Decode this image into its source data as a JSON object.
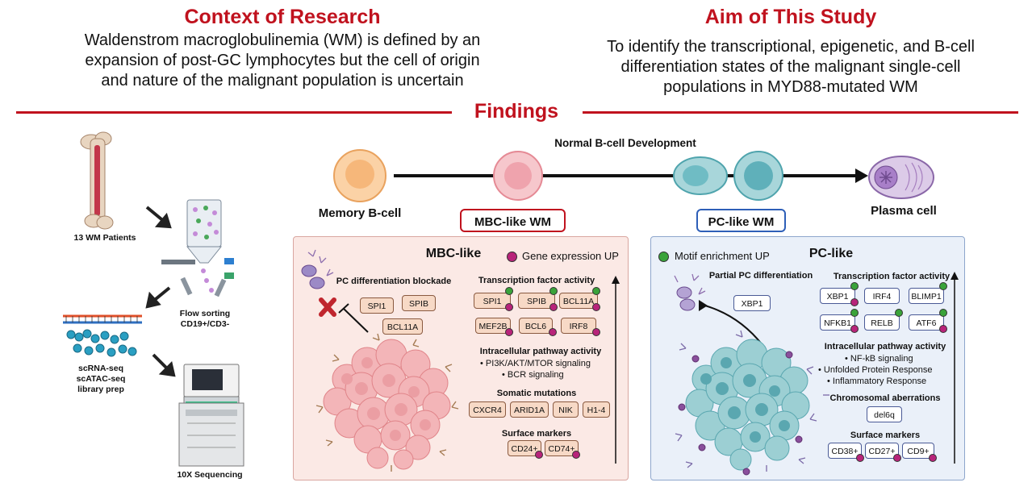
{
  "context": {
    "title": "Context of Research",
    "lines": [
      "Waldenstrom macroglobulinemia (WM) is defined by an",
      "expansion of post-GC lymphocytes but the cell of origin",
      "and nature of the malignant population is uncertain"
    ]
  },
  "aim": {
    "title": "Aim of This Study",
    "lines": [
      "To identify the transcriptional, epigenetic, and B-cell",
      "differentiation states of the malignant single-cell",
      "populations in MYD88-mutated WM"
    ]
  },
  "findings": {
    "title": "Findings"
  },
  "workflow": {
    "patients": "13 WM Patients",
    "flow": [
      "Flow sorting",
      "CD19+/CD3-"
    ],
    "library": [
      "scRNA-seq",
      "scATAC-seq",
      "library prep"
    ],
    "sequencing": "10X Sequencing"
  },
  "development": {
    "title": "Normal B-cell Development",
    "memory": "Memory B-cell",
    "plasma": "Plasma cell",
    "mbc_like_wm": "MBC-like WM",
    "pc_like_wm": "PC-like WM"
  },
  "colors": {
    "red": "#c0121e",
    "mbc_bg": "#fbe9e5",
    "pc_bg": "#eaf0f9",
    "pink_dot": "#b8247a",
    "green_dot": "#3aa33a"
  },
  "mbc": {
    "title": "MBC-like",
    "legend": "Gene expression UP",
    "blockade": "PC differentiation blockade",
    "blockade_genes": [
      "SPI1",
      "SPIB",
      "BCL11A"
    ],
    "tf_title": "Transcription factor activity",
    "tf_row1": [
      "SPI1",
      "SPIB",
      "BCL11A"
    ],
    "tf_row2": [
      "MEF2B",
      "BCL6",
      "IRF8"
    ],
    "pathway_title": "Intracellular pathway activity",
    "pathways": [
      "PI3K/AKT/MTOR signaling",
      "BCR signaling"
    ],
    "mut_title": "Somatic mutations",
    "mutations": [
      "CXCR4",
      "ARID1A",
      "NIK",
      "H1-4"
    ],
    "surface_title": "Surface markers",
    "surface": [
      "CD24+",
      "CD74+"
    ]
  },
  "pc": {
    "title": "PC-like",
    "legend": "Motif enrichment UP",
    "partial": "Partial PC differentiation",
    "partial_gene": "XBP1",
    "tf_title": "Transcription factor activity",
    "tf_row1": [
      "XBP1",
      "IRF4",
      "BLIMP1"
    ],
    "tf_row2": [
      "NFKB1",
      "RELB",
      "ATF6"
    ],
    "pathway_title": "Intracellular pathway activity",
    "pathways": [
      "NF-kB signaling",
      "Unfolded Protein Response",
      "Inflammatory Response"
    ],
    "chrom_title": "Chromosomal aberrations",
    "chrom": "del6q",
    "surface_title": "Surface markers",
    "surface": [
      "CD38+",
      "CD27+",
      "CD9+"
    ]
  }
}
